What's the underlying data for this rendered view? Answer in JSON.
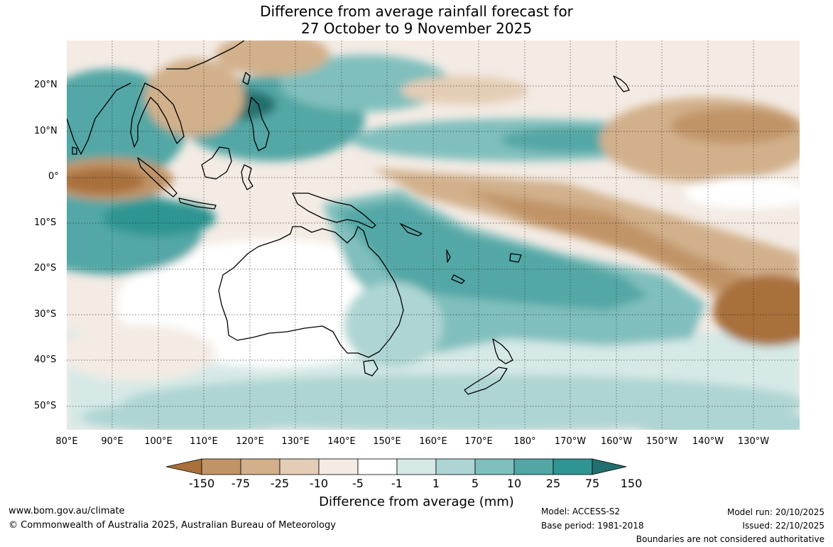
{
  "title": {
    "line1": "Difference from average rainfall forecast for",
    "line2": "27 October to 9 November 2025"
  },
  "lat_labels": [
    "20°N",
    "10°N",
    "0°",
    "10°S",
    "20°S",
    "30°S",
    "40°S",
    "50°S"
  ],
  "lon_labels": [
    "80°E",
    "90°E",
    "100°E",
    "110°E",
    "120°E",
    "130°E",
    "140°E",
    "150°E",
    "160°E",
    "170°E",
    "180°",
    "170°W",
    "160°W",
    "150°W",
    "140°W",
    "130°W"
  ],
  "colorbar": {
    "tick_labels": [
      "-150",
      "-75",
      "-25",
      "-10",
      "-5",
      "-1",
      "1",
      "5",
      "10",
      "25",
      "75",
      "150"
    ],
    "colors": [
      "#a8703a",
      "#c19467",
      "#d2b08b",
      "#e4cdb6",
      "#f3ebe4",
      "#ffffff",
      "#d6e9e7",
      "#aed5d3",
      "#80bfbd",
      "#52a7a6",
      "#2e9592",
      "#216f6e"
    ],
    "title": "Difference from average (mm)"
  },
  "footer": {
    "website": "www.bom.gov.au/climate",
    "copyright": "© Commonwealth of Australia 2025, Australian Bureau of Meteorology",
    "model": "Model: ACCESS-S2",
    "base_period": "Base period: 1981-2018",
    "model_run": "Model run: 20/10/2025",
    "issued": "Issued: 22/10/2025",
    "disclaimer": "Boundaries are not considered authoritative"
  }
}
